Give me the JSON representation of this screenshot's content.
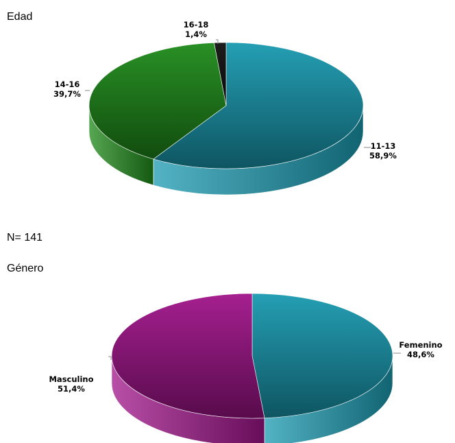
{
  "captions": {
    "edad": "Edad",
    "n": "N= 141",
    "genero": "Género"
  },
  "chart_data": [
    {
      "type": "pie",
      "title": "Edad",
      "style": "3d",
      "slices": [
        {
          "label": "11-13",
          "value": 58.9,
          "value_text": "58,9%",
          "color": "#1a9ab0"
        },
        {
          "label": "14-16",
          "value": 39.7,
          "value_text": "39,7%",
          "color": "#1e8a1a"
        },
        {
          "label": "16-18",
          "value": 1.4,
          "value_text": "1,4%",
          "color": "#111111"
        }
      ]
    },
    {
      "type": "pie",
      "title": "Género",
      "style": "3d",
      "slices": [
        {
          "label": "Femenino",
          "value": 48.6,
          "value_text": "48,6%",
          "color": "#1a9ab0"
        },
        {
          "label": "Masculino",
          "value": 51.4,
          "value_text": "51,4%",
          "color": "#a0148a"
        }
      ]
    }
  ]
}
